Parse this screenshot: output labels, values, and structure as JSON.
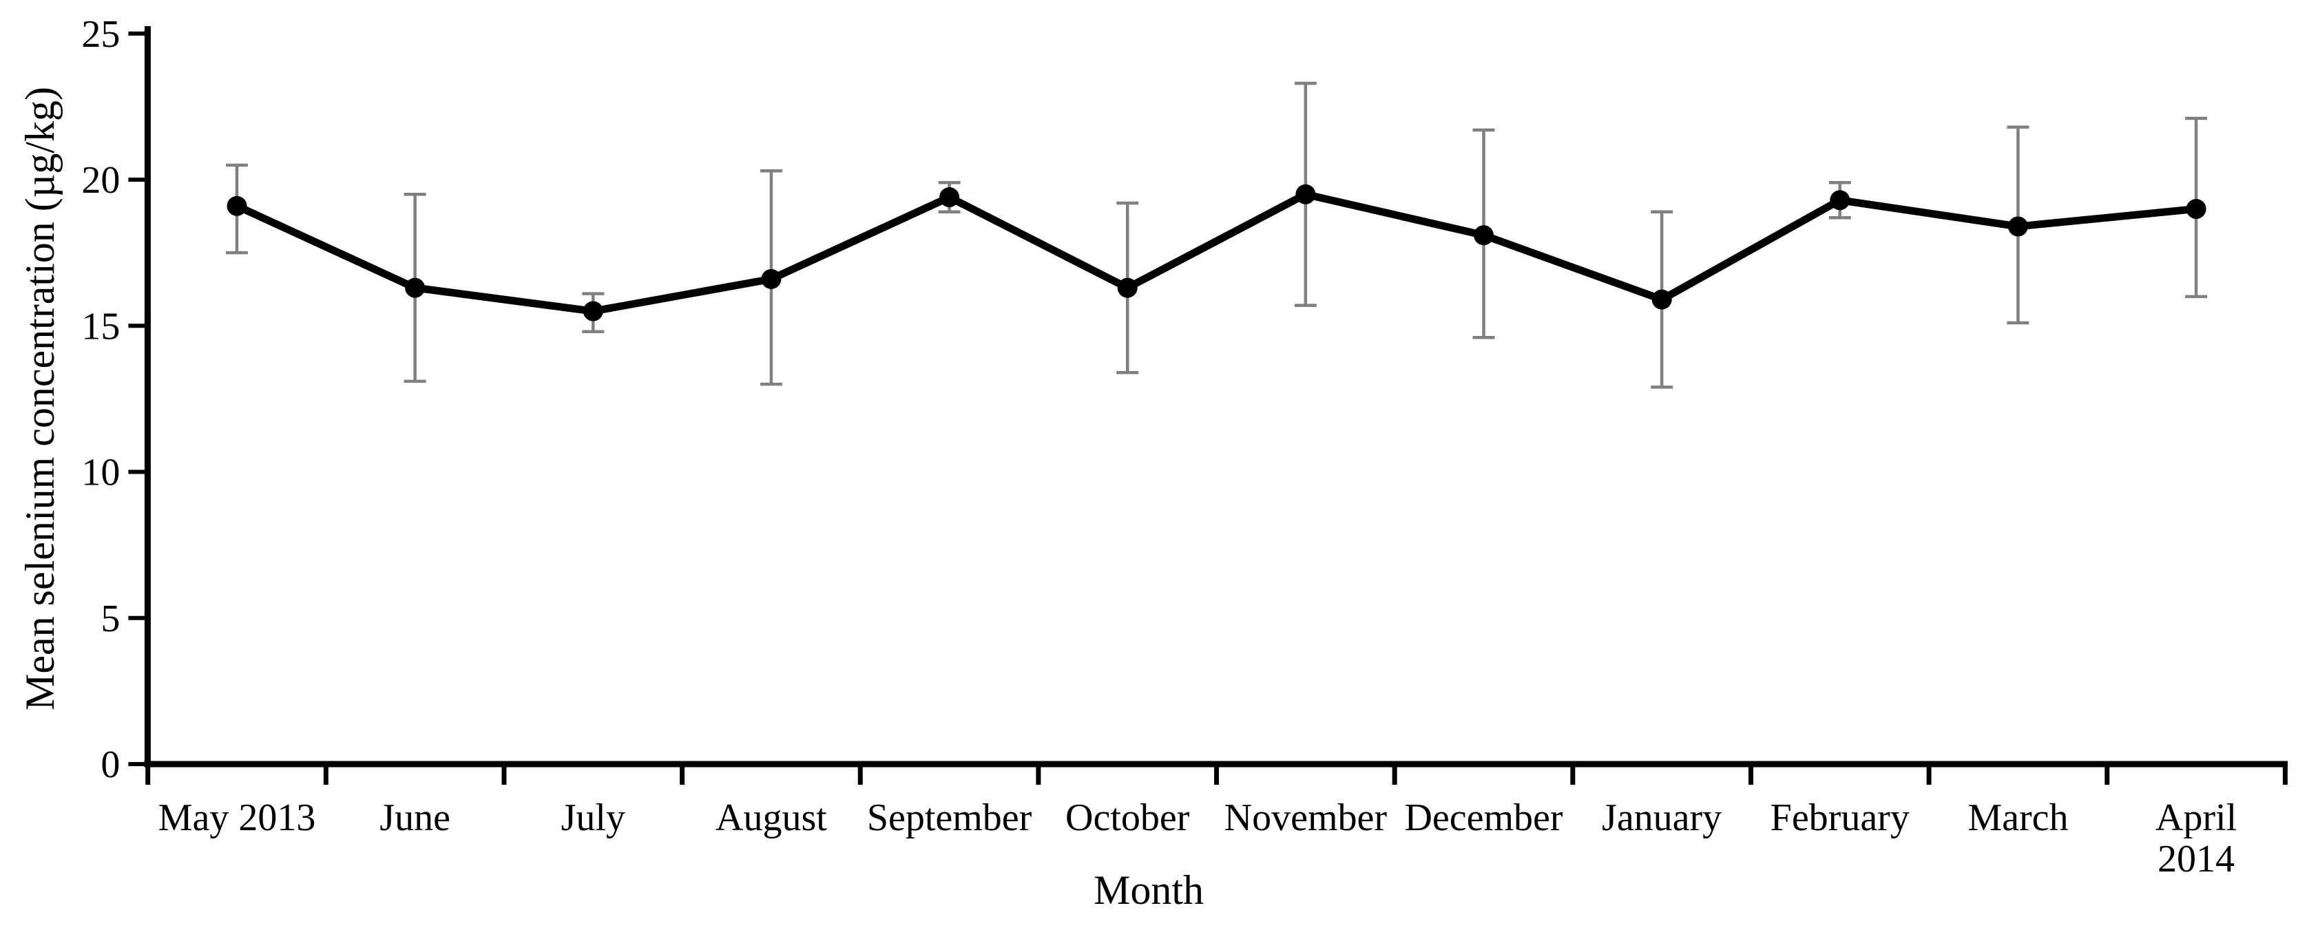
{
  "page": {
    "background": "#ffffff"
  },
  "chart_data": {
    "type": "line",
    "title": "",
    "xlabel": "Month",
    "ylabel": "Mean selenium concentration (µg/kg)",
    "categories": [
      "May 2013",
      "June",
      "July",
      "August",
      "September",
      "October",
      "November",
      "December",
      "January",
      "February",
      "March",
      "April\n2014"
    ],
    "series": [
      {
        "name": "Mean selenium concentration",
        "values": [
          19.1,
          16.3,
          15.5,
          16.6,
          19.4,
          16.3,
          19.5,
          18.1,
          15.9,
          19.3,
          18.4,
          19.0
        ],
        "error_upper": [
          20.5,
          19.5,
          16.1,
          20.3,
          19.9,
          19.2,
          23.3,
          21.7,
          18.9,
          19.9,
          21.8,
          22.1
        ],
        "error_lower": [
          17.5,
          13.1,
          14.8,
          13.0,
          18.9,
          13.4,
          15.7,
          14.6,
          12.9,
          18.7,
          15.1,
          16.0
        ]
      }
    ],
    "ylim": [
      0,
      25
    ],
    "yticks": [
      0,
      5,
      10,
      15,
      20,
      25
    ],
    "grid": false,
    "legend": false,
    "marker": "circle",
    "colors": {
      "line": "#000000",
      "marker": "#000000",
      "error_bar": "#808080",
      "axis": "#000000",
      "text": "#000000"
    }
  }
}
